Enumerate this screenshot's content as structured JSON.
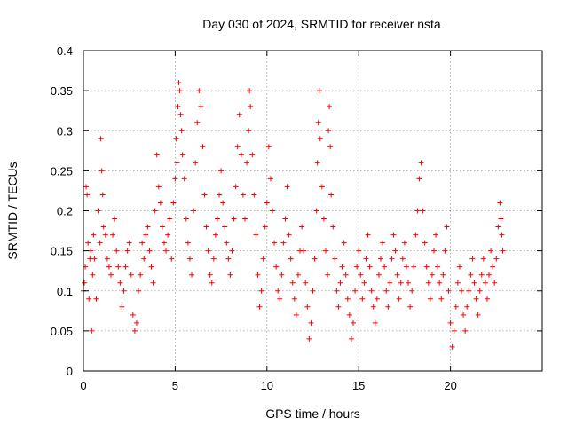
{
  "chart_data": {
    "type": "scatter",
    "title": "Day 030 of 2024, SRMTID for receiver nsta",
    "xlabel": "GPS time / hours",
    "ylabel": "SRMTID / TECUs",
    "xlim": [
      0,
      25
    ],
    "ylim": [
      0,
      0.4
    ],
    "xticks": [
      "0",
      "5",
      "10",
      "15",
      "20"
    ],
    "yticks": [
      "0",
      "0.05",
      "0.1",
      "0.15",
      "0.2",
      "0.25",
      "0.3",
      "0.35",
      "0.4"
    ],
    "grid": true,
    "marker": "plus",
    "color": "#ff0000",
    "series": [
      {
        "points": [
          [
            0.0,
            0.1
          ],
          [
            0.05,
            0.11
          ],
          [
            0.1,
            0.13
          ],
          [
            0.15,
            0.23
          ],
          [
            0.2,
            0.22
          ],
          [
            0.25,
            0.16
          ],
          [
            0.3,
            0.09
          ],
          [
            0.35,
            0.14
          ],
          [
            0.4,
            0.15
          ],
          [
            0.45,
            0.05
          ],
          [
            0.5,
            0.12
          ],
          [
            0.55,
            0.17
          ],
          [
            0.6,
            0.14
          ],
          [
            0.7,
            0.09
          ],
          [
            0.8,
            0.2
          ],
          [
            0.9,
            0.16
          ],
          [
            0.95,
            0.29
          ],
          [
            1.0,
            0.25
          ],
          [
            1.05,
            0.22
          ],
          [
            1.1,
            0.18
          ],
          [
            1.2,
            0.17
          ],
          [
            1.3,
            0.14
          ],
          [
            1.4,
            0.13
          ],
          [
            1.5,
            0.12
          ],
          [
            1.6,
            0.17
          ],
          [
            1.7,
            0.19
          ],
          [
            1.8,
            0.15
          ],
          [
            1.9,
            0.13
          ],
          [
            2.0,
            0.11
          ],
          [
            2.1,
            0.08
          ],
          [
            2.2,
            0.1
          ],
          [
            2.3,
            0.13
          ],
          [
            2.4,
            0.15
          ],
          [
            2.5,
            0.16
          ],
          [
            2.6,
            0.12
          ],
          [
            2.7,
            0.07
          ],
          [
            2.8,
            0.05
          ],
          [
            2.9,
            0.06
          ],
          [
            3.0,
            0.1
          ],
          [
            3.1,
            0.12
          ],
          [
            3.2,
            0.16
          ],
          [
            3.3,
            0.14
          ],
          [
            3.4,
            0.17
          ],
          [
            3.5,
            0.18
          ],
          [
            3.6,
            0.15
          ],
          [
            3.7,
            0.13
          ],
          [
            3.8,
            0.11
          ],
          [
            3.9,
            0.2
          ],
          [
            4.0,
            0.27
          ],
          [
            4.1,
            0.23
          ],
          [
            4.2,
            0.21
          ],
          [
            4.3,
            0.18
          ],
          [
            4.4,
            0.16
          ],
          [
            4.5,
            0.15
          ],
          [
            4.6,
            0.17
          ],
          [
            4.7,
            0.19
          ],
          [
            4.8,
            0.14
          ],
          [
            4.9,
            0.21
          ],
          [
            5.0,
            0.24
          ],
          [
            5.05,
            0.29
          ],
          [
            5.1,
            0.26
          ],
          [
            5.15,
            0.33
          ],
          [
            5.2,
            0.36
          ],
          [
            5.25,
            0.35
          ],
          [
            5.3,
            0.32
          ],
          [
            5.35,
            0.3
          ],
          [
            5.4,
            0.27
          ],
          [
            5.5,
            0.24
          ],
          [
            5.6,
            0.19
          ],
          [
            5.7,
            0.16
          ],
          [
            5.8,
            0.14
          ],
          [
            5.9,
            0.12
          ],
          [
            6.0,
            0.2
          ],
          [
            6.1,
            0.26
          ],
          [
            6.2,
            0.31
          ],
          [
            6.3,
            0.35
          ],
          [
            6.4,
            0.33
          ],
          [
            6.5,
            0.28
          ],
          [
            6.6,
            0.22
          ],
          [
            6.7,
            0.18
          ],
          [
            6.8,
            0.15
          ],
          [
            6.9,
            0.12
          ],
          [
            7.0,
            0.11
          ],
          [
            7.1,
            0.14
          ],
          [
            7.2,
            0.17
          ],
          [
            7.3,
            0.19
          ],
          [
            7.4,
            0.22
          ],
          [
            7.5,
            0.25
          ],
          [
            7.6,
            0.21
          ],
          [
            7.7,
            0.18
          ],
          [
            7.8,
            0.16
          ],
          [
            7.9,
            0.14
          ],
          [
            8.0,
            0.12
          ],
          [
            8.1,
            0.15
          ],
          [
            8.2,
            0.19
          ],
          [
            8.3,
            0.23
          ],
          [
            8.4,
            0.28
          ],
          [
            8.5,
            0.32
          ],
          [
            8.6,
            0.27
          ],
          [
            8.7,
            0.22
          ],
          [
            8.8,
            0.19
          ],
          [
            8.9,
            0.26
          ],
          [
            9.0,
            0.3
          ],
          [
            9.05,
            0.35
          ],
          [
            9.1,
            0.33
          ],
          [
            9.2,
            0.27
          ],
          [
            9.3,
            0.22
          ],
          [
            9.4,
            0.17
          ],
          [
            9.5,
            0.12
          ],
          [
            9.6,
            0.08
          ],
          [
            9.7,
            0.1
          ],
          [
            9.8,
            0.14
          ],
          [
            9.9,
            0.18
          ],
          [
            10.0,
            0.21
          ],
          [
            10.1,
            0.28
          ],
          [
            10.2,
            0.24
          ],
          [
            10.3,
            0.2
          ],
          [
            10.4,
            0.16
          ],
          [
            10.5,
            0.13
          ],
          [
            10.6,
            0.1
          ],
          [
            10.7,
            0.09
          ],
          [
            10.8,
            0.12
          ],
          [
            10.9,
            0.16
          ],
          [
            11.0,
            0.19
          ],
          [
            11.1,
            0.23
          ],
          [
            11.2,
            0.17
          ],
          [
            11.3,
            0.14
          ],
          [
            11.4,
            0.11
          ],
          [
            11.5,
            0.09
          ],
          [
            11.6,
            0.07
          ],
          [
            11.7,
            0.12
          ],
          [
            11.8,
            0.15
          ],
          [
            11.9,
            0.18
          ],
          [
            12.0,
            0.15
          ],
          [
            12.1,
            0.11
          ],
          [
            12.2,
            0.08
          ],
          [
            12.3,
            0.04
          ],
          [
            12.4,
            0.06
          ],
          [
            12.5,
            0.1
          ],
          [
            12.6,
            0.14
          ],
          [
            12.7,
            0.2
          ],
          [
            12.75,
            0.26
          ],
          [
            12.8,
            0.31
          ],
          [
            12.85,
            0.35
          ],
          [
            12.9,
            0.29
          ],
          [
            13.0,
            0.23
          ],
          [
            13.1,
            0.19
          ],
          [
            13.2,
            0.15
          ],
          [
            13.3,
            0.12
          ],
          [
            13.35,
            0.3
          ],
          [
            13.4,
            0.33
          ],
          [
            13.45,
            0.28
          ],
          [
            13.5,
            0.22
          ],
          [
            13.6,
            0.18
          ],
          [
            13.7,
            0.14
          ],
          [
            13.8,
            0.1
          ],
          [
            13.9,
            0.08
          ],
          [
            14.0,
            0.11
          ],
          [
            14.1,
            0.13
          ],
          [
            14.2,
            0.16
          ],
          [
            14.3,
            0.12
          ],
          [
            14.4,
            0.09
          ],
          [
            14.5,
            0.07
          ],
          [
            14.6,
            0.04
          ],
          [
            14.7,
            0.06
          ],
          [
            14.8,
            0.1
          ],
          [
            14.9,
            0.13
          ],
          [
            15.0,
            0.15
          ],
          [
            15.1,
            0.12
          ],
          [
            15.2,
            0.09
          ],
          [
            15.3,
            0.11
          ],
          [
            15.4,
            0.14
          ],
          [
            15.5,
            0.17
          ],
          [
            15.6,
            0.13
          ],
          [
            15.7,
            0.1
          ],
          [
            15.8,
            0.08
          ],
          [
            15.9,
            0.06
          ],
          [
            16.0,
            0.09
          ],
          [
            16.1,
            0.12
          ],
          [
            16.2,
            0.14
          ],
          [
            16.3,
            0.16
          ],
          [
            16.4,
            0.13
          ],
          [
            16.5,
            0.1
          ],
          [
            16.6,
            0.08
          ],
          [
            16.7,
            0.11
          ],
          [
            16.8,
            0.14
          ],
          [
            16.9,
            0.17
          ],
          [
            17.0,
            0.15
          ],
          [
            17.1,
            0.12
          ],
          [
            17.2,
            0.09
          ],
          [
            17.3,
            0.11
          ],
          [
            17.4,
            0.14
          ],
          [
            17.5,
            0.16
          ],
          [
            17.6,
            0.13
          ],
          [
            17.7,
            0.11
          ],
          [
            17.8,
            0.08
          ],
          [
            17.9,
            0.1
          ],
          [
            18.0,
            0.13
          ],
          [
            18.1,
            0.17
          ],
          [
            18.2,
            0.2
          ],
          [
            18.3,
            0.24
          ],
          [
            18.4,
            0.26
          ],
          [
            18.5,
            0.2
          ],
          [
            18.6,
            0.16
          ],
          [
            18.7,
            0.13
          ],
          [
            18.8,
            0.11
          ],
          [
            18.9,
            0.09
          ],
          [
            19.0,
            0.12
          ],
          [
            19.1,
            0.15
          ],
          [
            19.2,
            0.17
          ],
          [
            19.3,
            0.13
          ],
          [
            19.4,
            0.11
          ],
          [
            19.5,
            0.09
          ],
          [
            19.6,
            0.12
          ],
          [
            19.7,
            0.15
          ],
          [
            19.8,
            0.18
          ],
          [
            19.9,
            0.1
          ],
          [
            20.0,
            0.06
          ],
          [
            20.1,
            0.03
          ],
          [
            20.2,
            0.05
          ],
          [
            20.3,
            0.08
          ],
          [
            20.4,
            0.11
          ],
          [
            20.5,
            0.13
          ],
          [
            20.6,
            0.1
          ],
          [
            20.7,
            0.07
          ],
          [
            20.8,
            0.05
          ],
          [
            20.9,
            0.08
          ],
          [
            21.0,
            0.1
          ],
          [
            21.1,
            0.12
          ],
          [
            21.2,
            0.14
          ],
          [
            21.3,
            0.11
          ],
          [
            21.4,
            0.09
          ],
          [
            21.5,
            0.07
          ],
          [
            21.6,
            0.1
          ],
          [
            21.7,
            0.12
          ],
          [
            21.8,
            0.14
          ],
          [
            21.9,
            0.11
          ],
          [
            22.0,
            0.09
          ],
          [
            22.1,
            0.12
          ],
          [
            22.2,
            0.15
          ],
          [
            22.3,
            0.13
          ],
          [
            22.4,
            0.11
          ],
          [
            22.5,
            0.14
          ],
          [
            22.6,
            0.18
          ],
          [
            22.7,
            0.21
          ],
          [
            22.75,
            0.19
          ],
          [
            22.8,
            0.17
          ],
          [
            22.85,
            0.15
          ]
        ]
      }
    ]
  }
}
